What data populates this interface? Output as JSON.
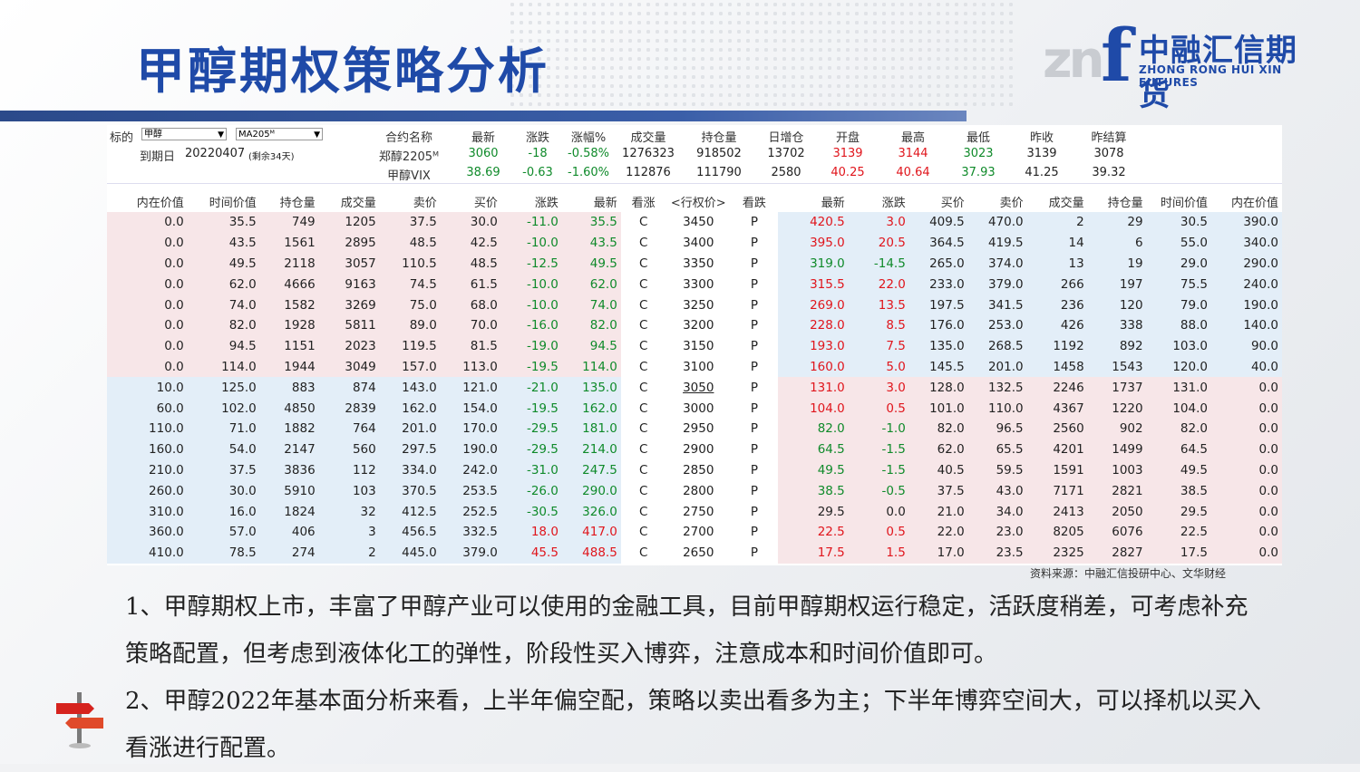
{
  "slide": {
    "title": "甲醇期权策略分析"
  },
  "logo": {
    "mark_gray": "zn",
    "mark_blue": "f",
    "name_cn": "中融汇信期货",
    "name_en": "ZHONG RONG HUI XIN FUTURES"
  },
  "quote": {
    "underlying_label": "标的",
    "underlying_value": "甲醇",
    "contract_value": "MA205ᴹ",
    "expiry_label": "到期日",
    "expiry_value": "20220407",
    "remaining": "(剩余34天)",
    "headers": [
      "合约名称",
      "最新",
      "涨跌",
      "涨幅%",
      "成交量",
      "持仓量",
      "日增仓",
      "开盘",
      "最高",
      "最低",
      "昨收",
      "昨结算"
    ],
    "rows": [
      {
        "name": "郑醇2205ᴹ",
        "last": "3060",
        "chg": "-18",
        "pct": "-0.58%",
        "vol": "1276323",
        "oi": "918502",
        "inc": "13702",
        "open": "3139",
        "high": "3144",
        "low": "3023",
        "prev_close": "3139",
        "prev_settle": "3078"
      },
      {
        "name": "甲醇VIX",
        "last": "38.69",
        "chg": "-0.63",
        "pct": "-1.60%",
        "vol": "112876",
        "oi": "111790",
        "inc": "2580",
        "open": "40.25",
        "high": "40.64",
        "low": "37.93",
        "prev_close": "41.25",
        "prev_settle": "39.32"
      }
    ]
  },
  "options": {
    "headers_call": [
      "内在价值",
      "时间价值",
      "持仓量",
      "成交量",
      "卖价",
      "买价",
      "涨跌",
      "最新"
    ],
    "header_mid": [
      "看涨",
      "<行权价>",
      "看跌"
    ],
    "headers_put": [
      "最新",
      "涨跌",
      "买价",
      "卖价",
      "成交量",
      "持仓量",
      "时间价值",
      "内在价值"
    ],
    "rows": [
      {
        "c": [
          "0.0",
          "35.5",
          "749",
          "1205",
          "37.5",
          "30.0",
          "-11.0",
          "35.5"
        ],
        "cc": "g",
        "k": "3450",
        "p": [
          "420.5",
          "3.0",
          "409.5",
          "470.0",
          "2",
          "29",
          "30.5",
          "390.0"
        ],
        "pc": "r",
        "itm": "put"
      },
      {
        "c": [
          "0.0",
          "43.5",
          "1561",
          "2895",
          "48.5",
          "42.5",
          "-10.0",
          "43.5"
        ],
        "cc": "g",
        "k": "3400",
        "p": [
          "395.0",
          "20.5",
          "364.5",
          "419.5",
          "14",
          "6",
          "55.0",
          "340.0"
        ],
        "pc": "r",
        "itm": "put"
      },
      {
        "c": [
          "0.0",
          "49.5",
          "2118",
          "3057",
          "110.5",
          "48.5",
          "-12.5",
          "49.5"
        ],
        "cc": "g",
        "k": "3350",
        "p": [
          "319.0",
          "-14.5",
          "265.0",
          "374.0",
          "13",
          "19",
          "29.0",
          "290.0"
        ],
        "pc": "g",
        "itm": "put"
      },
      {
        "c": [
          "0.0",
          "62.0",
          "4666",
          "9163",
          "74.5",
          "61.5",
          "-10.0",
          "62.0"
        ],
        "cc": "g",
        "k": "3300",
        "p": [
          "315.5",
          "22.0",
          "233.0",
          "379.0",
          "266",
          "197",
          "75.5",
          "240.0"
        ],
        "pc": "r",
        "itm": "put"
      },
      {
        "c": [
          "0.0",
          "74.0",
          "1582",
          "3269",
          "75.0",
          "68.0",
          "-10.0",
          "74.0"
        ],
        "cc": "g",
        "k": "3250",
        "p": [
          "269.0",
          "13.5",
          "197.5",
          "341.5",
          "236",
          "120",
          "79.0",
          "190.0"
        ],
        "pc": "r",
        "itm": "put"
      },
      {
        "c": [
          "0.0",
          "82.0",
          "1928",
          "5811",
          "89.0",
          "70.0",
          "-16.0",
          "82.0"
        ],
        "cc": "g",
        "k": "3200",
        "p": [
          "228.0",
          "8.5",
          "176.0",
          "253.0",
          "426",
          "338",
          "88.0",
          "140.0"
        ],
        "pc": "r",
        "itm": "put"
      },
      {
        "c": [
          "0.0",
          "94.5",
          "1151",
          "2023",
          "119.5",
          "81.5",
          "-19.0",
          "94.5"
        ],
        "cc": "g",
        "k": "3150",
        "p": [
          "193.0",
          "7.5",
          "135.0",
          "268.5",
          "1192",
          "892",
          "103.0",
          "90.0"
        ],
        "pc": "r",
        "itm": "put"
      },
      {
        "c": [
          "0.0",
          "114.0",
          "1944",
          "3049",
          "157.0",
          "113.0",
          "-19.5",
          "114.0"
        ],
        "cc": "g",
        "k": "3100",
        "p": [
          "160.0",
          "5.0",
          "145.5",
          "201.0",
          "1458",
          "1543",
          "120.0",
          "40.0"
        ],
        "pc": "r",
        "itm": "put"
      },
      {
        "c": [
          "10.0",
          "125.0",
          "883",
          "874",
          "143.0",
          "121.0",
          "-21.0",
          "135.0"
        ],
        "cc": "g",
        "k": "3050",
        "p": [
          "131.0",
          "3.0",
          "128.0",
          "132.5",
          "2246",
          "1737",
          "131.0",
          "0.0"
        ],
        "pc": "r",
        "itm": "call",
        "atm": true
      },
      {
        "c": [
          "60.0",
          "102.0",
          "4850",
          "2839",
          "162.0",
          "154.0",
          "-19.5",
          "162.0"
        ],
        "cc": "g",
        "k": "3000",
        "p": [
          "104.0",
          "0.5",
          "101.0",
          "110.0",
          "4367",
          "1220",
          "104.0",
          "0.0"
        ],
        "pc": "r",
        "itm": "call"
      },
      {
        "c": [
          "110.0",
          "71.0",
          "1882",
          "764",
          "201.0",
          "170.0",
          "-29.5",
          "181.0"
        ],
        "cc": "g",
        "k": "2950",
        "p": [
          "82.0",
          "-1.0",
          "82.0",
          "96.5",
          "2560",
          "902",
          "82.0",
          "0.0"
        ],
        "pc": "g",
        "itm": "call"
      },
      {
        "c": [
          "160.0",
          "54.0",
          "2147",
          "560",
          "297.5",
          "190.0",
          "-29.5",
          "214.0"
        ],
        "cc": "g",
        "k": "2900",
        "p": [
          "64.5",
          "-1.5",
          "62.0",
          "65.5",
          "4201",
          "1499",
          "64.5",
          "0.0"
        ],
        "pc": "g",
        "itm": "call"
      },
      {
        "c": [
          "210.0",
          "37.5",
          "3836",
          "112",
          "334.0",
          "242.0",
          "-31.0",
          "247.5"
        ],
        "cc": "g",
        "k": "2850",
        "p": [
          "49.5",
          "-1.5",
          "40.5",
          "59.5",
          "1591",
          "1003",
          "49.5",
          "0.0"
        ],
        "pc": "g",
        "itm": "call"
      },
      {
        "c": [
          "260.0",
          "30.0",
          "5910",
          "103",
          "370.5",
          "253.5",
          "-26.0",
          "290.0"
        ],
        "cc": "g",
        "k": "2800",
        "p": [
          "38.5",
          "-0.5",
          "37.5",
          "43.0",
          "7171",
          "2821",
          "38.5",
          "0.0"
        ],
        "pc": "g",
        "itm": "call"
      },
      {
        "c": [
          "310.0",
          "16.0",
          "1824",
          "32",
          "412.5",
          "252.5",
          "-30.5",
          "326.0"
        ],
        "cc": "g",
        "k": "2750",
        "p": [
          "29.5",
          "0.0",
          "21.0",
          "34.0",
          "2413",
          "2050",
          "29.5",
          "0.0"
        ],
        "pc": "k",
        "itm": "call"
      },
      {
        "c": [
          "360.0",
          "57.0",
          "406",
          "3",
          "456.5",
          "332.5",
          "18.0",
          "417.0"
        ],
        "cc": "r",
        "k": "2700",
        "p": [
          "22.5",
          "0.5",
          "22.0",
          "23.0",
          "8205",
          "6076",
          "22.5",
          "0.0"
        ],
        "pc": "r",
        "itm": "call"
      },
      {
        "c": [
          "410.0",
          "78.5",
          "274",
          "2",
          "445.0",
          "379.0",
          "45.5",
          "488.5"
        ],
        "cc": "r",
        "k": "2650",
        "p": [
          "17.5",
          "1.5",
          "17.0",
          "23.5",
          "2325",
          "2827",
          "17.5",
          "0.0"
        ],
        "pc": "r",
        "itm": "call"
      }
    ],
    "call_flag": "C",
    "put_flag": "P"
  },
  "source": "资料来源：中融汇信投研中心、文华财经",
  "text": {
    "p1": "1、甲醇期权上市，丰富了甲醇产业可以使用的金融工具，目前甲醇期权运行稳定，活跃度稍差，可考虑补充策略配置，但考虑到液体化工的弹性，阶段性买入博弈，注意成本和时间价值即可。",
    "p2": "2、甲醇2022年基本面分析来看，上半年偏空配，策略以卖出看多为主；下半年博弈空间大，可以择机以买入看涨进行配置。"
  },
  "colors": {
    "title": "#1f4aa8",
    "bar": "#2b4a8a",
    "up": "#e0151c",
    "down": "#0f8a2a",
    "itm_pink": "#f7e6e8",
    "itm_blue": "#e3eef8"
  }
}
